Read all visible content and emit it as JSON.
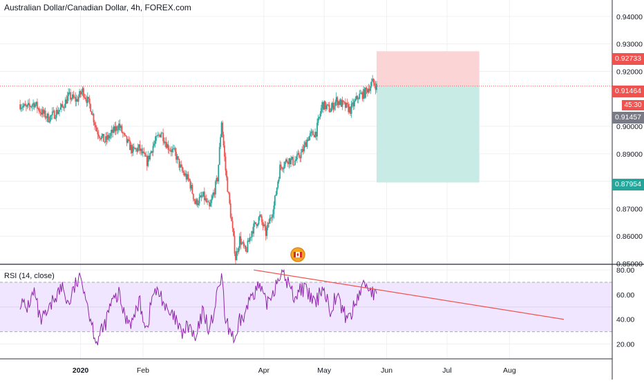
{
  "header": {
    "title": "Australian Dollar/Canadian Dollar, 4h, FOREX.com"
  },
  "rsi": {
    "title": "RSI (14, close)"
  },
  "tags": {
    "stop": "0.92733",
    "entry": "0.91464",
    "timer": "45:30",
    "last": "0.91457",
    "target": "0.87954"
  },
  "colors": {
    "up": "#26a69a",
    "down": "#ef5350",
    "rsi_line": "#8e24aa",
    "rsi_band": "#f0e6ff",
    "stop_zone": "#fbd5d5",
    "target_zone": "#c8ebe6",
    "trendline": "#ef5350",
    "last_price_tag": "#787b86"
  },
  "chart_data": [
    {
      "type": "candlestick",
      "title": "Australian Dollar/Canadian Dollar, 4h, FOREX.com",
      "y_ticks": [
        "0.85000",
        "0.86000",
        "0.87000",
        "0.88000",
        "0.89000",
        "0.90000",
        "0.92000",
        "0.93000",
        "0.94000"
      ],
      "ylim": [
        0.85,
        0.946
      ],
      "x_ticks": [
        "2020",
        "Feb",
        "Apr",
        "May",
        "Jun",
        "Jul",
        "Aug"
      ],
      "grid": true,
      "close_path": [
        [
          "2019-12-02",
          0.908
        ],
        [
          "2019-12-05",
          0.9065
        ],
        [
          "2019-12-09",
          0.9085
        ],
        [
          "2019-12-12",
          0.9055
        ],
        [
          "2019-12-16",
          0.903
        ],
        [
          "2019-12-19",
          0.9045
        ],
        [
          "2019-12-23",
          0.907
        ],
        [
          "2019-12-26",
          0.911
        ],
        [
          "2019-12-30",
          0.9095
        ],
        [
          "2020-01-02",
          0.913
        ],
        [
          "2020-01-06",
          0.907
        ],
        [
          "2020-01-09",
          0.8985
        ],
        [
          "2020-01-13",
          0.8945
        ],
        [
          "2020-01-16",
          0.897
        ],
        [
          "2020-01-20",
          0.9005
        ],
        [
          "2020-01-23",
          0.8955
        ],
        [
          "2020-01-27",
          0.891
        ],
        [
          "2020-01-30",
          0.892
        ],
        [
          "2020-02-03",
          0.887
        ],
        [
          "2020-02-06",
          0.893
        ],
        [
          "2020-02-10",
          0.898
        ],
        [
          "2020-02-13",
          0.893
        ],
        [
          "2020-02-17",
          0.89
        ],
        [
          "2020-02-20",
          0.884
        ],
        [
          "2020-02-24",
          0.88
        ],
        [
          "2020-02-27",
          0.872
        ],
        [
          "2020-03-02",
          0.8745
        ],
        [
          "2020-03-05",
          0.87
        ],
        [
          "2020-03-09",
          0.881
        ],
        [
          "2020-03-11",
          0.902
        ],
        [
          "2020-03-13",
          0.884
        ],
        [
          "2020-03-16",
          0.865
        ],
        [
          "2020-03-18",
          0.852
        ],
        [
          "2020-03-20",
          0.859
        ],
        [
          "2020-03-23",
          0.854
        ],
        [
          "2020-03-26",
          0.862
        ],
        [
          "2020-03-30",
          0.867
        ],
        [
          "2020-04-02",
          0.861
        ],
        [
          "2020-04-06",
          0.871
        ],
        [
          "2020-04-09",
          0.885
        ],
        [
          "2020-04-13",
          0.888
        ],
        [
          "2020-04-16",
          0.887
        ],
        [
          "2020-04-20",
          0.8905
        ],
        [
          "2020-04-23",
          0.896
        ],
        [
          "2020-04-27",
          0.898
        ],
        [
          "2020-04-30",
          0.908
        ],
        [
          "2020-05-04",
          0.906
        ],
        [
          "2020-05-07",
          0.9095
        ],
        [
          "2020-05-11",
          0.9075
        ],
        [
          "2020-05-14",
          0.906
        ],
        [
          "2020-05-18",
          0.911
        ],
        [
          "2020-05-21",
          0.912
        ],
        [
          "2020-05-25",
          0.916
        ],
        [
          "2020-05-27",
          0.9146
        ]
      ],
      "position": {
        "entry": 0.91464,
        "stop": 0.92733,
        "target": 0.87954,
        "start": "2020-05-27",
        "end": "2020-07-17"
      },
      "last_price": 0.91457
    },
    {
      "type": "line",
      "title": "RSI (14, close)",
      "y_ticks": [
        "20.00",
        "40.00",
        "60.00",
        "80.00"
      ],
      "ylim": [
        8,
        84
      ],
      "levels": {
        "upper": 70,
        "middle": 50,
        "lower": 30
      },
      "series": [
        {
          "values_path": [
            [
              "2019-12-02",
              55
            ],
            [
              "2019-12-05",
              48
            ],
            [
              "2019-12-09",
              62
            ],
            [
              "2019-12-12",
              38
            ],
            [
              "2019-12-16",
              45
            ],
            [
              "2019-12-19",
              58
            ],
            [
              "2019-12-23",
              66
            ],
            [
              "2019-12-26",
              52
            ],
            [
              "2019-12-30",
              70
            ],
            [
              "2020-01-02",
              72
            ],
            [
              "2020-01-06",
              40
            ],
            [
              "2020-01-09",
              22
            ],
            [
              "2020-01-13",
              35
            ],
            [
              "2020-01-16",
              52
            ],
            [
              "2020-01-20",
              60
            ],
            [
              "2020-01-23",
              42
            ],
            [
              "2020-01-27",
              38
            ],
            [
              "2020-01-30",
              55
            ],
            [
              "2020-02-03",
              32
            ],
            [
              "2020-02-06",
              62
            ],
            [
              "2020-02-10",
              60
            ],
            [
              "2020-02-13",
              45
            ],
            [
              "2020-02-17",
              40
            ],
            [
              "2020-02-20",
              28
            ],
            [
              "2020-02-24",
              35
            ],
            [
              "2020-02-27",
              22
            ],
            [
              "2020-03-02",
              48
            ],
            [
              "2020-03-05",
              30
            ],
            [
              "2020-03-09",
              60
            ],
            [
              "2020-03-11",
              76
            ],
            [
              "2020-03-13",
              36
            ],
            [
              "2020-03-16",
              30
            ],
            [
              "2020-03-18",
              20
            ],
            [
              "2020-03-20",
              38
            ],
            [
              "2020-03-23",
              45
            ],
            [
              "2020-03-26",
              62
            ],
            [
              "2020-03-30",
              66
            ],
            [
              "2020-04-02",
              52
            ],
            [
              "2020-04-06",
              64
            ],
            [
              "2020-04-09",
              78
            ],
            [
              "2020-04-13",
              70
            ],
            [
              "2020-04-16",
              58
            ],
            [
              "2020-04-20",
              66
            ],
            [
              "2020-04-23",
              60
            ],
            [
              "2020-04-27",
              52
            ],
            [
              "2020-04-30",
              68
            ],
            [
              "2020-05-04",
              48
            ],
            [
              "2020-05-07",
              60
            ],
            [
              "2020-05-11",
              44
            ],
            [
              "2020-05-14",
              42
            ],
            [
              "2020-05-18",
              60
            ],
            [
              "2020-05-21",
              70
            ],
            [
              "2020-05-25",
              62
            ],
            [
              "2020-05-27",
              57
            ]
          ]
        }
      ],
      "trendline": {
        "from": [
          "2020-03-27",
          80
        ],
        "to": [
          "2020-08-28",
          40
        ]
      }
    }
  ]
}
